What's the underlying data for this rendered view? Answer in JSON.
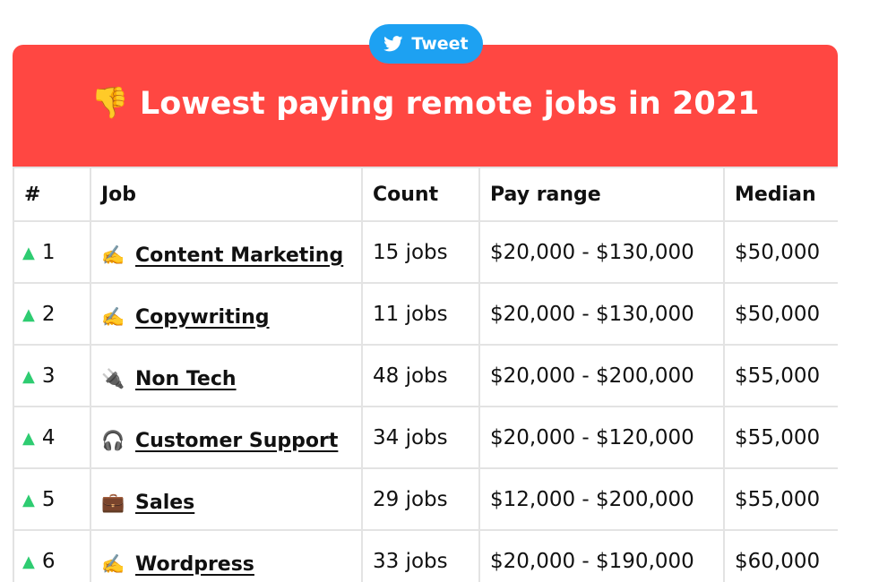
{
  "tweet_button": {
    "label": "Tweet",
    "icon": "twitter-bird-icon",
    "color": "#1da1f2"
  },
  "banner": {
    "icon": "👎",
    "icon_name": "thumbs-down-icon",
    "title": "Lowest paying remote jobs in 2021",
    "color": "#ff4742"
  },
  "table": {
    "headers": {
      "rank": "#",
      "job": "Job",
      "count": "Count",
      "pay_range": "Pay range",
      "median": "Median"
    },
    "rows": [
      {
        "trend": "▲",
        "trend_color": "#2ecc71",
        "rank": "1",
        "icon": "✍️",
        "icon_name": "writing-hand-icon",
        "job": "Content Marketing",
        "count": "15 jobs",
        "pay_range": "$20,000 - $130,000",
        "median": "$50,000"
      },
      {
        "trend": "▲",
        "trend_color": "#2ecc71",
        "rank": "2",
        "icon": "✍️",
        "icon_name": "writing-hand-icon",
        "job": "Copywriting",
        "count": "11 jobs",
        "pay_range": "$20,000 - $130,000",
        "median": "$50,000"
      },
      {
        "trend": "▲",
        "trend_color": "#2ecc71",
        "rank": "3",
        "icon": "🔌",
        "icon_name": "electric-plug-icon",
        "job": "Non Tech",
        "count": "48 jobs",
        "pay_range": "$20,000 - $200,000",
        "median": "$55,000"
      },
      {
        "trend": "▲",
        "trend_color": "#2ecc71",
        "rank": "4",
        "icon": "🎧",
        "icon_name": "headphones-icon",
        "job": "Customer Support",
        "count": "34 jobs",
        "pay_range": "$20,000 - $120,000",
        "median": "$55,000"
      },
      {
        "trend": "▲",
        "trend_color": "#2ecc71",
        "rank": "5",
        "icon": "💼",
        "icon_name": "briefcase-icon",
        "job": "Sales",
        "count": "29 jobs",
        "pay_range": "$12,000 - $200,000",
        "median": "$55,000"
      },
      {
        "trend": "▲",
        "trend_color": "#2ecc71",
        "rank": "6",
        "icon": "✍️",
        "icon_name": "writing-hand-icon",
        "job": "Wordpress",
        "count": "33 jobs",
        "pay_range": "$20,000 - $190,000",
        "median": "$60,000"
      }
    ]
  }
}
